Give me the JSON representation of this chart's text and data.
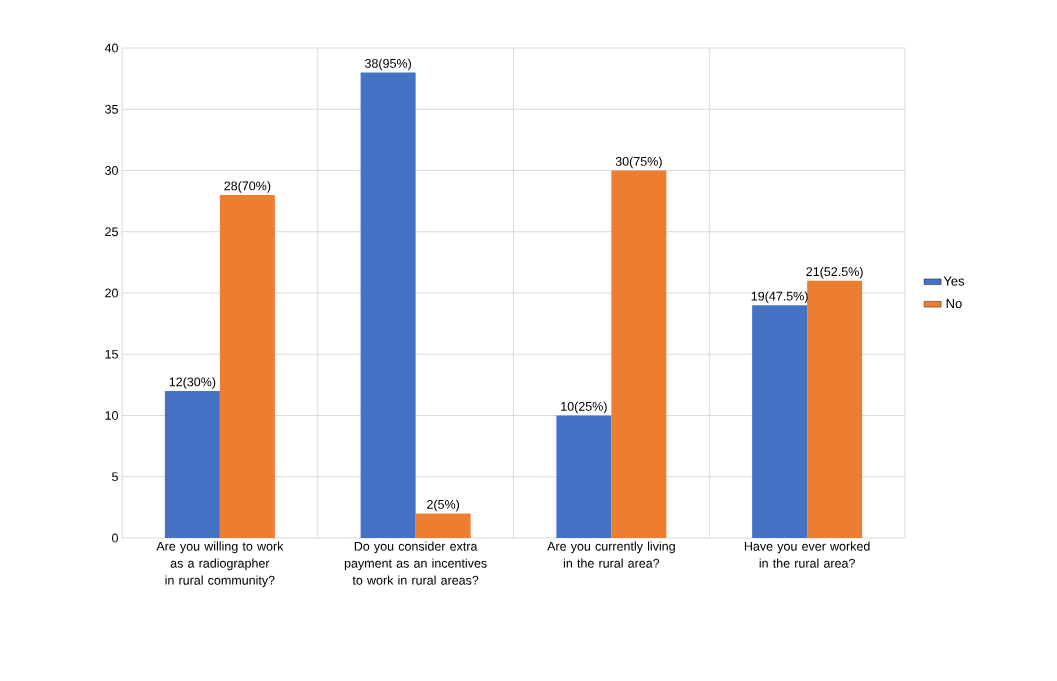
{
  "chart_data": {
    "type": "bar",
    "categories": [
      "Are you willing to work as a radiographer in rural community?",
      "Do you consider extra payment as an incentives to work in rural areas?",
      "Are you currently living in the rural area?",
      "Have you ever worked in the rural area?"
    ],
    "series": [
      {
        "name": "Yes",
        "color": "#4472c4",
        "values": [
          12,
          38,
          10,
          19
        ],
        "value_labels": [
          "12(30%)",
          "38(95%)",
          "10(25%)",
          "19(47.5%)"
        ]
      },
      {
        "name": "No",
        "color": "#ed7d31",
        "values": [
          28,
          2,
          30,
          21
        ],
        "value_labels": [
          "28(70%)",
          "2(5%)",
          "30(75%)",
          "21(52.5%)"
        ]
      }
    ],
    "ylim": [
      0,
      40
    ],
    "yticks": [
      0,
      5,
      10,
      15,
      20,
      25,
      30,
      35,
      40
    ],
    "grid": true,
    "legend": "right"
  }
}
